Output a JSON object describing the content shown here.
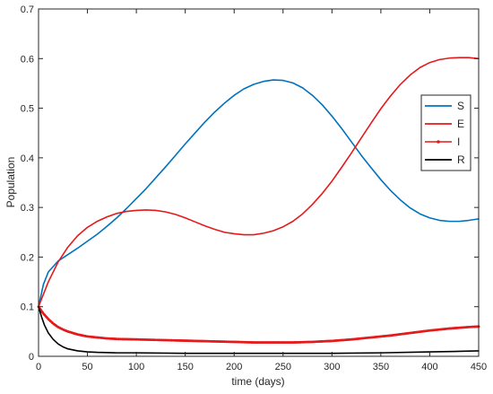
{
  "chart_data": {
    "type": "line",
    "xlabel": "time (days)",
    "ylabel": "Population",
    "xlim": [
      0,
      450
    ],
    "ylim": [
      0,
      0.7
    ],
    "xticks": [
      0,
      50,
      100,
      150,
      200,
      250,
      300,
      350,
      400,
      450
    ],
    "yticks": [
      0,
      0.1,
      0.2,
      0.3,
      0.4,
      0.5,
      0.6,
      0.7
    ],
    "grid": false,
    "legend_position": "right",
    "series": [
      {
        "name": "S",
        "color": "#0072BD",
        "marker": "none",
        "points": [
          [
            0,
            0.1
          ],
          [
            5,
            0.145
          ],
          [
            10,
            0.17
          ],
          [
            20,
            0.192
          ],
          [
            30,
            0.205
          ],
          [
            40,
            0.218
          ],
          [
            50,
            0.232
          ],
          [
            60,
            0.246
          ],
          [
            70,
            0.262
          ],
          [
            80,
            0.279
          ],
          [
            90,
            0.298
          ],
          [
            100,
            0.318
          ],
          [
            110,
            0.338
          ],
          [
            120,
            0.36
          ],
          [
            130,
            0.382
          ],
          [
            140,
            0.405
          ],
          [
            150,
            0.428
          ],
          [
            160,
            0.45
          ],
          [
            170,
            0.472
          ],
          [
            180,
            0.492
          ],
          [
            190,
            0.51
          ],
          [
            200,
            0.526
          ],
          [
            210,
            0.539
          ],
          [
            220,
            0.548
          ],
          [
            230,
            0.554
          ],
          [
            240,
            0.557
          ],
          [
            250,
            0.556
          ],
          [
            260,
            0.551
          ],
          [
            270,
            0.541
          ],
          [
            280,
            0.526
          ],
          [
            290,
            0.507
          ],
          [
            300,
            0.484
          ],
          [
            310,
            0.459
          ],
          [
            320,
            0.432
          ],
          [
            330,
            0.405
          ],
          [
            340,
            0.38
          ],
          [
            350,
            0.356
          ],
          [
            360,
            0.334
          ],
          [
            370,
            0.315
          ],
          [
            380,
            0.299
          ],
          [
            390,
            0.287
          ],
          [
            400,
            0.279
          ],
          [
            410,
            0.274
          ],
          [
            420,
            0.272
          ],
          [
            430,
            0.272
          ],
          [
            440,
            0.274
          ],
          [
            450,
            0.277
          ]
        ]
      },
      {
        "name": "E",
        "color": "#E41A1C",
        "marker": "none",
        "points": [
          [
            0,
            0.1
          ],
          [
            10,
            0.15
          ],
          [
            20,
            0.19
          ],
          [
            30,
            0.22
          ],
          [
            40,
            0.243
          ],
          [
            50,
            0.26
          ],
          [
            60,
            0.272
          ],
          [
            70,
            0.281
          ],
          [
            80,
            0.288
          ],
          [
            90,
            0.292
          ],
          [
            100,
            0.294
          ],
          [
            110,
            0.295
          ],
          [
            120,
            0.294
          ],
          [
            130,
            0.291
          ],
          [
            140,
            0.286
          ],
          [
            150,
            0.279
          ],
          [
            160,
            0.271
          ],
          [
            170,
            0.263
          ],
          [
            180,
            0.256
          ],
          [
            190,
            0.25
          ],
          [
            200,
            0.247
          ],
          [
            210,
            0.245
          ],
          [
            220,
            0.245
          ],
          [
            230,
            0.248
          ],
          [
            240,
            0.253
          ],
          [
            250,
            0.261
          ],
          [
            260,
            0.272
          ],
          [
            270,
            0.287
          ],
          [
            280,
            0.306
          ],
          [
            290,
            0.328
          ],
          [
            300,
            0.353
          ],
          [
            310,
            0.381
          ],
          [
            320,
            0.41
          ],
          [
            330,
            0.44
          ],
          [
            340,
            0.47
          ],
          [
            350,
            0.499
          ],
          [
            360,
            0.525
          ],
          [
            370,
            0.548
          ],
          [
            380,
            0.567
          ],
          [
            390,
            0.582
          ],
          [
            400,
            0.592
          ],
          [
            410,
            0.598
          ],
          [
            420,
            0.601
          ],
          [
            430,
            0.602
          ],
          [
            440,
            0.602
          ],
          [
            450,
            0.6
          ]
        ]
      },
      {
        "name": "I",
        "color": "#E41A1C",
        "marker": "dot",
        "points": [
          [
            0,
            0.1
          ],
          [
            5,
            0.086
          ],
          [
            10,
            0.075
          ],
          [
            15,
            0.066
          ],
          [
            20,
            0.059
          ],
          [
            25,
            0.054
          ],
          [
            30,
            0.05
          ],
          [
            40,
            0.044
          ],
          [
            50,
            0.04
          ],
          [
            60,
            0.038
          ],
          [
            70,
            0.036
          ],
          [
            80,
            0.035
          ],
          [
            100,
            0.034
          ],
          [
            120,
            0.033
          ],
          [
            140,
            0.032
          ],
          [
            160,
            0.031
          ],
          [
            180,
            0.03
          ],
          [
            200,
            0.029
          ],
          [
            220,
            0.028
          ],
          [
            240,
            0.028
          ],
          [
            260,
            0.028
          ],
          [
            280,
            0.029
          ],
          [
            300,
            0.031
          ],
          [
            320,
            0.034
          ],
          [
            340,
            0.038
          ],
          [
            360,
            0.042
          ],
          [
            380,
            0.047
          ],
          [
            400,
            0.052
          ],
          [
            420,
            0.056
          ],
          [
            440,
            0.059
          ],
          [
            450,
            0.06
          ]
        ]
      },
      {
        "name": "R",
        "color": "#000000",
        "marker": "none",
        "points": [
          [
            0,
            0.1
          ],
          [
            3,
            0.08
          ],
          [
            6,
            0.063
          ],
          [
            10,
            0.047
          ],
          [
            15,
            0.034
          ],
          [
            20,
            0.025
          ],
          [
            25,
            0.019
          ],
          [
            30,
            0.015
          ],
          [
            40,
            0.011
          ],
          [
            50,
            0.009
          ],
          [
            60,
            0.008
          ],
          [
            80,
            0.007
          ],
          [
            100,
            0.007
          ],
          [
            150,
            0.006
          ],
          [
            200,
            0.006
          ],
          [
            250,
            0.006
          ],
          [
            300,
            0.006
          ],
          [
            350,
            0.007
          ],
          [
            400,
            0.009
          ],
          [
            430,
            0.01
          ],
          [
            450,
            0.011
          ]
        ]
      }
    ]
  }
}
